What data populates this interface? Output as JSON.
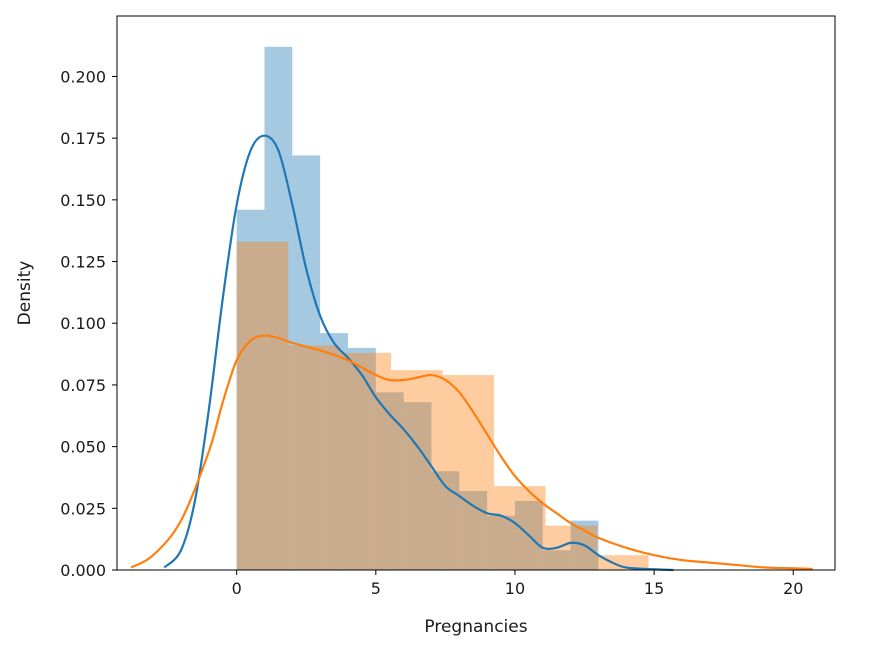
{
  "chart_data": {
    "type": "histogram-kde",
    "xlabel": "Pregnancies",
    "ylabel": "Density",
    "xlim": [
      -4.3,
      21.5
    ],
    "ylim": [
      0,
      0.2245
    ],
    "xticks": [
      0,
      5,
      10,
      15,
      20
    ],
    "xtick_labels": [
      "0",
      "5",
      "10",
      "15",
      "20"
    ],
    "yticks": [
      0,
      0.025,
      0.05,
      0.075,
      0.1,
      0.125,
      0.15,
      0.175,
      0.2
    ],
    "ytick_labels": [
      "0.000",
      "0.025",
      "0.050",
      "0.075",
      "0.100",
      "0.125",
      "0.150",
      "0.175",
      "0.200"
    ],
    "grid": false,
    "legend": null,
    "series": [
      {
        "color": "#1f77b4",
        "bar_alpha": 0.4,
        "bins": [
          {
            "x0": 0.0,
            "x1": 1.0,
            "density": 0.146
          },
          {
            "x0": 1.0,
            "x1": 2.0,
            "density": 0.212
          },
          {
            "x0": 2.0,
            "x1": 3.0,
            "density": 0.168
          },
          {
            "x0": 3.0,
            "x1": 4.0,
            "density": 0.096
          },
          {
            "x0": 4.0,
            "x1": 5.0,
            "density": 0.09
          },
          {
            "x0": 5.0,
            "x1": 6.0,
            "density": 0.072
          },
          {
            "x0": 6.0,
            "x1": 7.0,
            "density": 0.068
          },
          {
            "x0": 7.0,
            "x1": 8.0,
            "density": 0.04
          },
          {
            "x0": 8.0,
            "x1": 9.0,
            "density": 0.032
          },
          {
            "x0": 9.0,
            "x1": 10.0,
            "density": 0.022
          },
          {
            "x0": 10.0,
            "x1": 11.0,
            "density": 0.028
          },
          {
            "x0": 11.0,
            "x1": 12.0,
            "density": 0.008
          },
          {
            "x0": 12.0,
            "x1": 13.0,
            "density": 0.02
          }
        ],
        "kde": [
          [
            -2.6,
            0.001
          ],
          [
            -2.0,
            0.008
          ],
          [
            -1.5,
            0.028
          ],
          [
            -1.0,
            0.065
          ],
          [
            -0.5,
            0.11
          ],
          [
            0.0,
            0.148
          ],
          [
            0.5,
            0.17
          ],
          [
            1.0,
            0.176
          ],
          [
            1.5,
            0.17
          ],
          [
            2.0,
            0.148
          ],
          [
            2.5,
            0.122
          ],
          [
            3.0,
            0.103
          ],
          [
            3.5,
            0.092
          ],
          [
            4.0,
            0.086
          ],
          [
            4.5,
            0.079
          ],
          [
            5.0,
            0.07
          ],
          [
            5.5,
            0.063
          ],
          [
            6.0,
            0.057
          ],
          [
            6.5,
            0.05
          ],
          [
            7.0,
            0.042
          ],
          [
            7.5,
            0.034
          ],
          [
            8.0,
            0.03
          ],
          [
            8.5,
            0.026
          ],
          [
            9.0,
            0.023
          ],
          [
            9.5,
            0.022
          ],
          [
            10.0,
            0.019
          ],
          [
            10.5,
            0.014
          ],
          [
            11.0,
            0.009
          ],
          [
            11.5,
            0.009
          ],
          [
            12.0,
            0.011
          ],
          [
            12.5,
            0.01
          ],
          [
            13.0,
            0.006
          ],
          [
            13.5,
            0.003
          ],
          [
            14.0,
            0.001
          ],
          [
            15.0,
            0.0003
          ],
          [
            15.7,
            0.0
          ]
        ]
      },
      {
        "color": "#ff7f0e",
        "bar_alpha": 0.4,
        "bins": [
          {
            "x0": 0.0,
            "x1": 1.85,
            "density": 0.133
          },
          {
            "x0": 1.85,
            "x1": 3.7,
            "density": 0.091
          },
          {
            "x0": 3.7,
            "x1": 5.55,
            "density": 0.088
          },
          {
            "x0": 5.55,
            "x1": 7.4,
            "density": 0.081
          },
          {
            "x0": 7.4,
            "x1": 9.25,
            "density": 0.079
          },
          {
            "x0": 9.25,
            "x1": 11.1,
            "density": 0.034
          },
          {
            "x0": 11.1,
            "x1": 12.95,
            "density": 0.018
          },
          {
            "x0": 12.95,
            "x1": 14.8,
            "density": 0.006
          }
        ],
        "kde": [
          [
            -3.8,
            0.001
          ],
          [
            -3.0,
            0.006
          ],
          [
            -2.0,
            0.02
          ],
          [
            -1.0,
            0.048
          ],
          [
            -0.5,
            0.068
          ],
          [
            0.0,
            0.085
          ],
          [
            0.5,
            0.093
          ],
          [
            1.0,
            0.095
          ],
          [
            1.5,
            0.094
          ],
          [
            2.0,
            0.092
          ],
          [
            3.0,
            0.089
          ],
          [
            4.0,
            0.085
          ],
          [
            5.0,
            0.079
          ],
          [
            5.5,
            0.077
          ],
          [
            6.0,
            0.077
          ],
          [
            6.5,
            0.078
          ],
          [
            7.0,
            0.079
          ],
          [
            7.5,
            0.077
          ],
          [
            8.0,
            0.072
          ],
          [
            8.5,
            0.064
          ],
          [
            9.0,
            0.055
          ],
          [
            9.5,
            0.046
          ],
          [
            10.0,
            0.038
          ],
          [
            10.5,
            0.032
          ],
          [
            11.0,
            0.027
          ],
          [
            11.5,
            0.023
          ],
          [
            12.0,
            0.019
          ],
          [
            12.5,
            0.016
          ],
          [
            13.0,
            0.013
          ],
          [
            14.0,
            0.009
          ],
          [
            15.0,
            0.006
          ],
          [
            16.0,
            0.004
          ],
          [
            17.0,
            0.003
          ],
          [
            18.0,
            0.002
          ],
          [
            19.0,
            0.001
          ],
          [
            20.0,
            0.0007
          ],
          [
            20.7,
            0.0004
          ]
        ]
      }
    ]
  }
}
